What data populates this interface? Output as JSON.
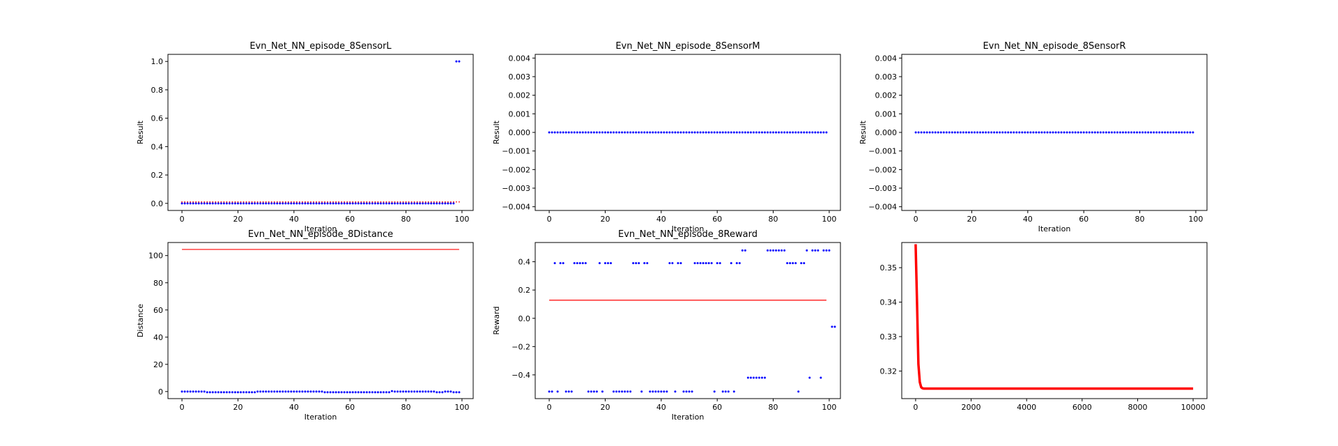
{
  "colors": {
    "points": "#0000ff",
    "line": "#ff0000",
    "axes": "#000000"
  },
  "chart_data": [
    {
      "type": "scatter",
      "title": "Evn_Net_NN_episode_8SensorL",
      "xlabel": "Iteration",
      "ylabel": "Result",
      "xlim": [
        -5,
        104
      ],
      "ylim": [
        -0.05,
        1.05
      ],
      "xticks": [
        0,
        20,
        40,
        60,
        80,
        100
      ],
      "xtick_labels": [
        "0",
        "20",
        "40",
        "60",
        "80",
        "100"
      ],
      "yticks": [
        0,
        0.2,
        0.4,
        0.6,
        0.8,
        1.0
      ],
      "ytick_labels": [
        "0.0",
        "0.2",
        "0.4",
        "0.6",
        "0.8",
        "1.0"
      ],
      "series": [
        {
          "kind": "points",
          "color": "#0000ff",
          "x_start": 0,
          "x_step": 1,
          "values": [
            0,
            0,
            0,
            0,
            0,
            0,
            0,
            0,
            0,
            0,
            0,
            0,
            0,
            0,
            0,
            0,
            0,
            0,
            0,
            0,
            0,
            0,
            0,
            0,
            0,
            0,
            0,
            0,
            0,
            0,
            0,
            0,
            0,
            0,
            0,
            0,
            0,
            0,
            0,
            0,
            0,
            0,
            0,
            0,
            0,
            0,
            0,
            0,
            0,
            0,
            0,
            0,
            0,
            0,
            0,
            0,
            0,
            0,
            0,
            0,
            0,
            0,
            0,
            0,
            0,
            0,
            0,
            0,
            0,
            0,
            0,
            0,
            0,
            0,
            0,
            0,
            0,
            0,
            0,
            0,
            0,
            0,
            0,
            0,
            0,
            0,
            0,
            0,
            0,
            0,
            0,
            0,
            0,
            0,
            0,
            0,
            0,
            0,
            1,
            1
          ]
        },
        {
          "kind": "small-points",
          "color": "#ff0000",
          "x_start": 0,
          "x_step": 1,
          "values": [
            0.01,
            0.01,
            0.01,
            0.01,
            0.01,
            0.01,
            0.01,
            0.01,
            0.01,
            0.01,
            0.01,
            0.01,
            0.01,
            0.01,
            0.01,
            0.01,
            0.01,
            0.01,
            0.01,
            0.01,
            0.01,
            0.01,
            0.01,
            0.01,
            0.01,
            0.01,
            0.01,
            0.01,
            0.01,
            0.01,
            0.01,
            0.01,
            0.01,
            0.01,
            0.01,
            0.01,
            0.01,
            0.01,
            0.01,
            0.01,
            0.01,
            0.01,
            0.01,
            0.01,
            0.01,
            0.01,
            0.01,
            0.01,
            0.01,
            0.01,
            0.01,
            0.01,
            0.01,
            0.01,
            0.01,
            0.01,
            0.01,
            0.01,
            0.01,
            0.01,
            0.01,
            0.01,
            0.01,
            0.01,
            0.01,
            0.01,
            0.01,
            0.01,
            0.01,
            0.01,
            0.01,
            0.01,
            0.01,
            0.01,
            0.01,
            0.01,
            0.01,
            0.01,
            0.01,
            0.01,
            0.01,
            0.01,
            0.01,
            0.01,
            0.01,
            0.01,
            0.01,
            0.01,
            0.01,
            0.01,
            0.01,
            0.01,
            0.01,
            0.01,
            0.01,
            0.01,
            0.01,
            0.01,
            0.01,
            0.01
          ]
        }
      ]
    },
    {
      "type": "scatter",
      "title": "Evn_Net_NN_episode_8SensorM",
      "xlabel": "Iteration",
      "ylabel": "Result",
      "xlim": [
        -5,
        104
      ],
      "ylim": [
        -0.0042,
        0.0042
      ],
      "xticks": [
        0,
        20,
        40,
        60,
        80,
        100
      ],
      "xtick_labels": [
        "0",
        "20",
        "40",
        "60",
        "80",
        "100"
      ],
      "yticks": [
        -0.004,
        -0.003,
        -0.002,
        -0.001,
        0,
        0.001,
        0.002,
        0.003,
        0.004
      ],
      "ytick_labels": [
        "−0.004",
        "−0.003",
        "−0.002",
        "−0.001",
        "0.000",
        "0.001",
        "0.002",
        "0.003",
        "0.004"
      ],
      "series": [
        {
          "kind": "points",
          "color": "#0000ff",
          "x_start": 0,
          "x_step": 1,
          "values": [
            0,
            0,
            0,
            0,
            0,
            0,
            0,
            0,
            0,
            0,
            0,
            0,
            0,
            0,
            0,
            0,
            0,
            0,
            0,
            0,
            0,
            0,
            0,
            0,
            0,
            0,
            0,
            0,
            0,
            0,
            0,
            0,
            0,
            0,
            0,
            0,
            0,
            0,
            0,
            0,
            0,
            0,
            0,
            0,
            0,
            0,
            0,
            0,
            0,
            0,
            0,
            0,
            0,
            0,
            0,
            0,
            0,
            0,
            0,
            0,
            0,
            0,
            0,
            0,
            0,
            0,
            0,
            0,
            0,
            0,
            0,
            0,
            0,
            0,
            0,
            0,
            0,
            0,
            0,
            0,
            0,
            0,
            0,
            0,
            0,
            0,
            0,
            0,
            0,
            0,
            0,
            0,
            0,
            0,
            0,
            0,
            0,
            0,
            0,
            0
          ]
        }
      ]
    },
    {
      "type": "scatter",
      "title": "Evn_Net_NN_episode_8SensorR",
      "xlabel": "Iteration",
      "ylabel": "Result",
      "xlim": [
        -5,
        104
      ],
      "ylim": [
        -0.0042,
        0.0042
      ],
      "xticks": [
        0,
        20,
        40,
        60,
        80,
        100
      ],
      "xtick_labels": [
        "0",
        "20",
        "40",
        "60",
        "80",
        "100"
      ],
      "yticks": [
        -0.004,
        -0.003,
        -0.002,
        -0.001,
        0,
        0.001,
        0.002,
        0.003,
        0.004
      ],
      "ytick_labels": [
        "−0.004",
        "−0.003",
        "−0.002",
        "−0.001",
        "0.000",
        "0.001",
        "0.002",
        "0.003",
        "0.004"
      ],
      "series": [
        {
          "kind": "points",
          "color": "#0000ff",
          "x_start": 0,
          "x_step": 1,
          "values": [
            0,
            0,
            0,
            0,
            0,
            0,
            0,
            0,
            0,
            0,
            0,
            0,
            0,
            0,
            0,
            0,
            0,
            0,
            0,
            0,
            0,
            0,
            0,
            0,
            0,
            0,
            0,
            0,
            0,
            0,
            0,
            0,
            0,
            0,
            0,
            0,
            0,
            0,
            0,
            0,
            0,
            0,
            0,
            0,
            0,
            0,
            0,
            0,
            0,
            0,
            0,
            0,
            0,
            0,
            0,
            0,
            0,
            0,
            0,
            0,
            0,
            0,
            0,
            0,
            0,
            0,
            0,
            0,
            0,
            0,
            0,
            0,
            0,
            0,
            0,
            0,
            0,
            0,
            0,
            0,
            0,
            0,
            0,
            0,
            0,
            0,
            0,
            0,
            0,
            0,
            0,
            0,
            0,
            0,
            0,
            0,
            0,
            0,
            0,
            0
          ]
        }
      ]
    },
    {
      "type": "scatter",
      "title": "Evn_Net_NN_episode_8Distance",
      "xlabel": "Iteration",
      "ylabel": "Distance",
      "xlim": [
        -5,
        104
      ],
      "ylim": [
        -5.2,
        109.6
      ],
      "xticks": [
        0,
        20,
        40,
        60,
        80,
        100
      ],
      "xtick_labels": [
        "0",
        "20",
        "40",
        "60",
        "80",
        "100"
      ],
      "yticks": [
        0,
        20,
        40,
        60,
        80,
        100
      ],
      "ytick_labels": [
        "0",
        "20",
        "40",
        "60",
        "80",
        "100"
      ],
      "series": [
        {
          "kind": "points",
          "color": "#0000ff",
          "x_start": 0,
          "x_step": 1,
          "values": [
            0,
            0,
            0,
            0,
            0,
            0,
            0,
            0,
            0,
            -0.5,
            -0.5,
            -0.5,
            -0.5,
            -0.5,
            -0.5,
            -0.5,
            -0.5,
            -0.5,
            -0.5,
            -0.5,
            -0.5,
            -0.5,
            -0.5,
            -0.5,
            -0.5,
            -0.5,
            -0.5,
            0,
            0,
            0,
            0,
            0,
            0,
            0,
            0,
            0,
            0,
            0,
            0,
            0,
            0,
            0,
            0,
            0,
            0,
            0,
            0,
            0,
            0,
            0,
            0,
            -0.5,
            -0.5,
            -0.5,
            -0.5,
            -0.5,
            -0.5,
            -0.5,
            -0.5,
            -0.5,
            -0.5,
            -0.5,
            -0.5,
            -0.5,
            -0.5,
            -0.5,
            -0.5,
            -0.5,
            -0.5,
            -0.5,
            -0.5,
            -0.5,
            -0.5,
            -0.5,
            -0.5,
            0.3,
            0,
            0,
            0,
            0,
            0,
            0,
            0,
            0,
            0,
            0,
            0,
            0,
            0,
            0,
            0,
            -0.5,
            -0.5,
            -0.5,
            0,
            0,
            0,
            -0.5,
            -0.5,
            -0.5
          ]
        },
        {
          "kind": "line",
          "color": "#ff0000",
          "x": [
            0,
            99
          ],
          "values": [
            104.5,
            104.5
          ]
        }
      ]
    },
    {
      "type": "scatter",
      "title": "Evn_Net_NN_episode_8Reward",
      "xlabel": "Iteration",
      "ylabel": "Reward",
      "xlim": [
        -5,
        104
      ],
      "ylim": [
        -0.568,
        0.536
      ],
      "xticks": [
        0,
        20,
        40,
        60,
        80,
        100
      ],
      "xtick_labels": [
        "0",
        "20",
        "40",
        "60",
        "80",
        "100"
      ],
      "yticks": [
        -0.4,
        -0.2,
        0.0,
        0.2,
        0.4
      ],
      "ytick_labels": [
        "−0.4",
        "−0.2",
        "0.0",
        "0.2",
        "0.4"
      ],
      "series": [
        {
          "kind": "points",
          "color": "#0000ff",
          "x_start": 0,
          "x_step": 1,
          "values": [
            -0.518,
            -0.518,
            0.39,
            -0.518,
            0.39,
            0.39,
            -0.518,
            -0.518,
            -0.518,
            0.39,
            0.39,
            0.39,
            0.39,
            0.39,
            -0.518,
            -0.518,
            -0.518,
            -0.518,
            0.39,
            -0.518,
            0.39,
            0.39,
            0.39,
            -0.518,
            -0.518,
            -0.518,
            -0.518,
            -0.518,
            -0.518,
            -0.518,
            0.39,
            0.39,
            0.39,
            -0.518,
            0.39,
            0.39,
            -0.518,
            -0.518,
            -0.518,
            -0.518,
            -0.518,
            -0.518,
            -0.518,
            0.39,
            0.39,
            -0.518,
            0.39,
            0.39,
            -0.518,
            -0.518,
            -0.518,
            -0.518,
            0.39,
            0.39,
            0.39,
            0.39,
            0.39,
            0.39,
            0.39,
            -0.518,
            0.39,
            0.39,
            -0.518,
            -0.518,
            -0.518,
            0.39,
            -0.518,
            0.39,
            0.39,
            0.48,
            0.48,
            -0.42,
            -0.42,
            -0.42,
            -0.42,
            -0.42,
            -0.42,
            -0.42,
            0.48,
            0.48,
            0.48,
            0.48,
            0.48,
            0.48,
            0.48,
            0.39,
            0.39,
            0.39,
            0.39,
            -0.518,
            0.39,
            0.39,
            0.48,
            -0.42,
            0.48,
            0.48,
            0.48,
            -0.42,
            0.48,
            0.48,
            0.48,
            -0.06,
            -0.06
          ]
        },
        {
          "kind": "line",
          "color": "#ff0000",
          "x": [
            0,
            99
          ],
          "values": [
            0.128,
            0.128
          ]
        }
      ]
    },
    {
      "type": "line",
      "title": "",
      "xlabel": "",
      "ylabel": "",
      "xlim": [
        -500,
        10500
      ],
      "ylim": [
        0.312,
        0.3573
      ],
      "xticks": [
        0,
        2000,
        4000,
        6000,
        8000,
        10000
      ],
      "xtick_labels": [
        "0",
        "2000",
        "4000",
        "6000",
        "8000",
        "10000"
      ],
      "yticks": [
        0.32,
        0.33,
        0.34,
        0.35
      ],
      "ytick_labels": [
        "0.32",
        "0.33",
        "0.34",
        "0.35"
      ],
      "series": [
        {
          "kind": "thick-line",
          "color": "#ff0000",
          "x": [
            0,
            50,
            100,
            150,
            200,
            250,
            300,
            400,
            600,
            1000,
            10000
          ],
          "values": [
            0.3568,
            0.34,
            0.322,
            0.3168,
            0.3153,
            0.315,
            0.3149,
            0.3149,
            0.3149,
            0.3149,
            0.3149
          ]
        }
      ]
    }
  ]
}
